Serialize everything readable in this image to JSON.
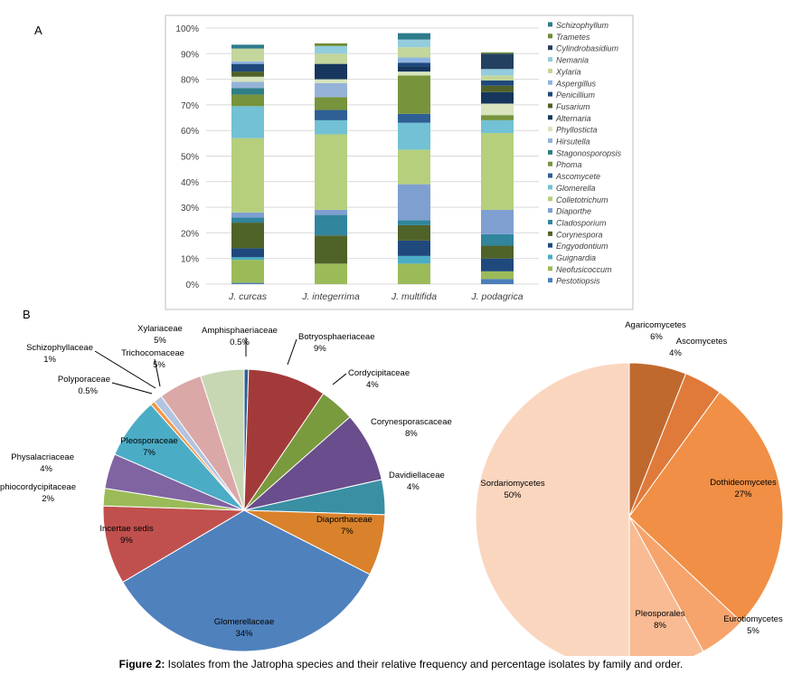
{
  "panel_a_label": "A",
  "panel_b_label": "B",
  "caption": {
    "label": "Figure 2:",
    "text": "Isolates from the Jatropha species and their relative frequency and percentage isolates by family and order."
  },
  "chart_data": [
    {
      "type": "bar",
      "stacked": true,
      "percent_stacked": true,
      "categories": [
        "J. curcas",
        "J. integerrima",
        "J. multifida",
        "J. podagrica"
      ],
      "ylim": [
        0,
        100
      ],
      "yticks": [
        "0%",
        "10%",
        "20%",
        "30%",
        "40%",
        "50%",
        "60%",
        "70%",
        "80%",
        "90%",
        "100%"
      ],
      "grid": true,
      "legend": "right",
      "series": [
        {
          "name": "Pestotiopsis",
          "color": "#4a7ebb",
          "values": [
            0.5,
            0,
            0,
            2
          ]
        },
        {
          "name": "Neofusicoccum",
          "color": "#9bbb59",
          "values": [
            9,
            8,
            8,
            3
          ]
        },
        {
          "name": "Guignardia",
          "color": "#4bacc6",
          "values": [
            1,
            0,
            3,
            0
          ]
        },
        {
          "name": "Engyodontium",
          "color": "#1f497d",
          "values": [
            3.5,
            0,
            6,
            5
          ]
        },
        {
          "name": "Corynespora",
          "color": "#4f6228",
          "values": [
            10,
            11,
            6,
            5
          ]
        },
        {
          "name": "Cladosporium",
          "color": "#31859c",
          "values": [
            2,
            8,
            2,
            4.5
          ]
        },
        {
          "name": "Diaporthe",
          "color": "#7f9fd1",
          "values": [
            2,
            2,
            14,
            9.5
          ]
        },
        {
          "name": "Colletotrichum",
          "color": "#b5cf7d",
          "values": [
            29,
            29.5,
            13.5,
            30
          ]
        },
        {
          "name": "Glomerella",
          "color": "#72c1d4",
          "values": [
            12.5,
            5.5,
            10.5,
            5
          ]
        },
        {
          "name": "Ascomycete",
          "color": "#2e5f95",
          "values": [
            0,
            4,
            3.5,
            0
          ]
        },
        {
          "name": "Phoma",
          "color": "#77933c",
          "values": [
            4.5,
            5,
            15,
            2
          ]
        },
        {
          "name": "Stagonosporopsis",
          "color": "#2f7f86",
          "values": [
            2.5,
            0,
            0,
            0
          ]
        },
        {
          "name": "Hirsutella",
          "color": "#95b3d7",
          "values": [
            2.5,
            5.5,
            0,
            0
          ]
        },
        {
          "name": "Phyllosticta",
          "color": "#d7e4bd",
          "values": [
            2,
            1.5,
            1.5,
            4.5
          ]
        },
        {
          "name": "Alternaria",
          "color": "#17365d",
          "values": [
            0,
            6,
            2,
            4.5
          ]
        },
        {
          "name": "Fusarium",
          "color": "#4f6228",
          "values": [
            2,
            0,
            0,
            2.5
          ]
        },
        {
          "name": "Penicillium",
          "color": "#1f497d",
          "values": [
            3,
            0,
            1.5,
            2
          ]
        },
        {
          "name": "Aspergillus",
          "color": "#8eb4e3",
          "values": [
            1,
            0,
            2,
            0
          ]
        },
        {
          "name": "Xylaria",
          "color": "#c3d69b",
          "values": [
            5,
            4,
            4,
            2
          ]
        },
        {
          "name": "Nemania",
          "color": "#93cddd",
          "values": [
            0,
            3,
            3,
            2.5
          ]
        },
        {
          "name": "Cylindrobasidium",
          "color": "#244061",
          "values": [
            0,
            0,
            0,
            6
          ]
        },
        {
          "name": "Trametes",
          "color": "#6f8b34",
          "values": [
            0,
            1,
            0,
            0.5
          ]
        },
        {
          "name": "Schizophyllum",
          "color": "#2e7b8c",
          "values": [
            1.5,
            0,
            2.5,
            0
          ]
        }
      ]
    },
    {
      "type": "pie",
      "slices": [
        {
          "label": "Amphisphaeriaceae",
          "pct": "0.5%",
          "value": 0.5,
          "color": "#2e5f95"
        },
        {
          "label": "Botryosphaeriaceae",
          "pct": "9%",
          "value": 9,
          "color": "#a33a3a"
        },
        {
          "label": "Cordycipitaceae",
          "pct": "4%",
          "value": 4,
          "color": "#7a9a3e"
        },
        {
          "label": "Corynesporascaceae",
          "pct": "8%",
          "value": 8,
          "color": "#6a4d8c"
        },
        {
          "label": "Davidiellaceae",
          "pct": "4%",
          "value": 4,
          "color": "#3a8fa3"
        },
        {
          "label": "Diaporthaceae",
          "pct": "7%",
          "value": 7,
          "color": "#d9822b"
        },
        {
          "label": "Glomerellaceae",
          "pct": "34%",
          "value": 34,
          "color": "#4f81bd"
        },
        {
          "label": "Incertae sedis",
          "pct": "9%",
          "value": 9,
          "color": "#c0504d"
        },
        {
          "label": "Ophiocordycipitaceae",
          "pct": "2%",
          "value": 2,
          "color": "#9bbb59"
        },
        {
          "label": "Physalacriaceae",
          "pct": "4%",
          "value": 4,
          "color": "#8064a2"
        },
        {
          "label": "Pleosporaceae",
          "pct": "7%",
          "value": 7,
          "color": "#4bacc6"
        },
        {
          "label": "Polyporaceae",
          "pct": "0.5%",
          "value": 0.5,
          "color": "#f79646"
        },
        {
          "label": "Schizophyllaceae",
          "pct": "1%",
          "value": 1,
          "color": "#b3c4e0"
        },
        {
          "label": "Trichocomaceae",
          "pct": "5%",
          "value": 5,
          "color": "#dba8a8"
        },
        {
          "label": "Xylariaceae",
          "pct": "5%",
          "value": 5,
          "color": "#c8d7b3"
        }
      ]
    },
    {
      "type": "pie",
      "slices": [
        {
          "label": "Agaricomycetes",
          "pct": "6%",
          "value": 6,
          "color": "#c0692e"
        },
        {
          "label": "Ascomycetes",
          "pct": "4%",
          "value": 4,
          "color": "#e07a3a"
        },
        {
          "label": "Dothideomycetes",
          "pct": "27%",
          "value": 27,
          "color": "#f08f45"
        },
        {
          "label": "Eurotiomycetes",
          "pct": "5%",
          "value": 5,
          "color": "#f6a46c"
        },
        {
          "label": "Pleosporales",
          "pct": "8%",
          "value": 8,
          "color": "#f8bb94"
        },
        {
          "label": "Sordariomycetes",
          "pct": "50%",
          "value": 50,
          "color": "#fbd6bf"
        }
      ]
    }
  ]
}
